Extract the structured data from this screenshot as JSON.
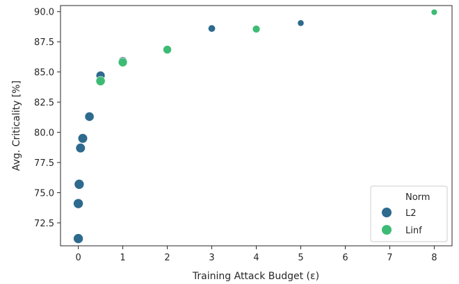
{
  "chart_data": {
    "type": "scatter",
    "title": "",
    "xlabel": "Training Attack Budget (ε)",
    "ylabel": "Avg. Criticality [%]",
    "xlim": [
      -0.4,
      8.4
    ],
    "ylim": [
      70.6,
      90.5
    ],
    "xticks": [
      0,
      1,
      2,
      3,
      4,
      5,
      6,
      7,
      8
    ],
    "yticks": [
      72.5,
      75.0,
      77.5,
      80.0,
      82.5,
      85.0,
      87.5,
      90.0
    ],
    "ytick_labels": [
      "72.5",
      "75.0",
      "77.5",
      "80.0",
      "82.5",
      "85.0",
      "87.5",
      "90.0"
    ],
    "grid": false,
    "legend_title": "Norm",
    "legend_position": "lower-right",
    "series": [
      {
        "name": "L2",
        "color": "#2e6a8e",
        "points": [
          {
            "x": 0.0,
            "y": 71.2,
            "size": 1.0
          },
          {
            "x": 0.0,
            "y": 74.1,
            "size": 1.0
          },
          {
            "x": 0.02,
            "y": 75.7,
            "size": 1.0
          },
          {
            "x": 0.05,
            "y": 78.7,
            "size": 0.95
          },
          {
            "x": 0.1,
            "y": 79.5,
            "size": 0.95
          },
          {
            "x": 0.25,
            "y": 81.3,
            "size": 0.9
          },
          {
            "x": 0.5,
            "y": 84.7,
            "size": 0.85
          },
          {
            "x": 1.0,
            "y": 85.9,
            "size": 0.8
          },
          {
            "x": 3.0,
            "y": 88.6,
            "size": 0.55
          },
          {
            "x": 5.0,
            "y": 89.05,
            "size": 0.4
          }
        ]
      },
      {
        "name": "Linf",
        "color": "#3dbb74",
        "points": [
          {
            "x": 0.5,
            "y": 84.25,
            "size": 0.9
          },
          {
            "x": 1.0,
            "y": 85.8,
            "size": 0.85
          },
          {
            "x": 2.0,
            "y": 86.85,
            "size": 0.75
          },
          {
            "x": 4.0,
            "y": 88.55,
            "size": 0.6
          },
          {
            "x": 8.0,
            "y": 89.95,
            "size": 0.35
          }
        ]
      }
    ]
  }
}
